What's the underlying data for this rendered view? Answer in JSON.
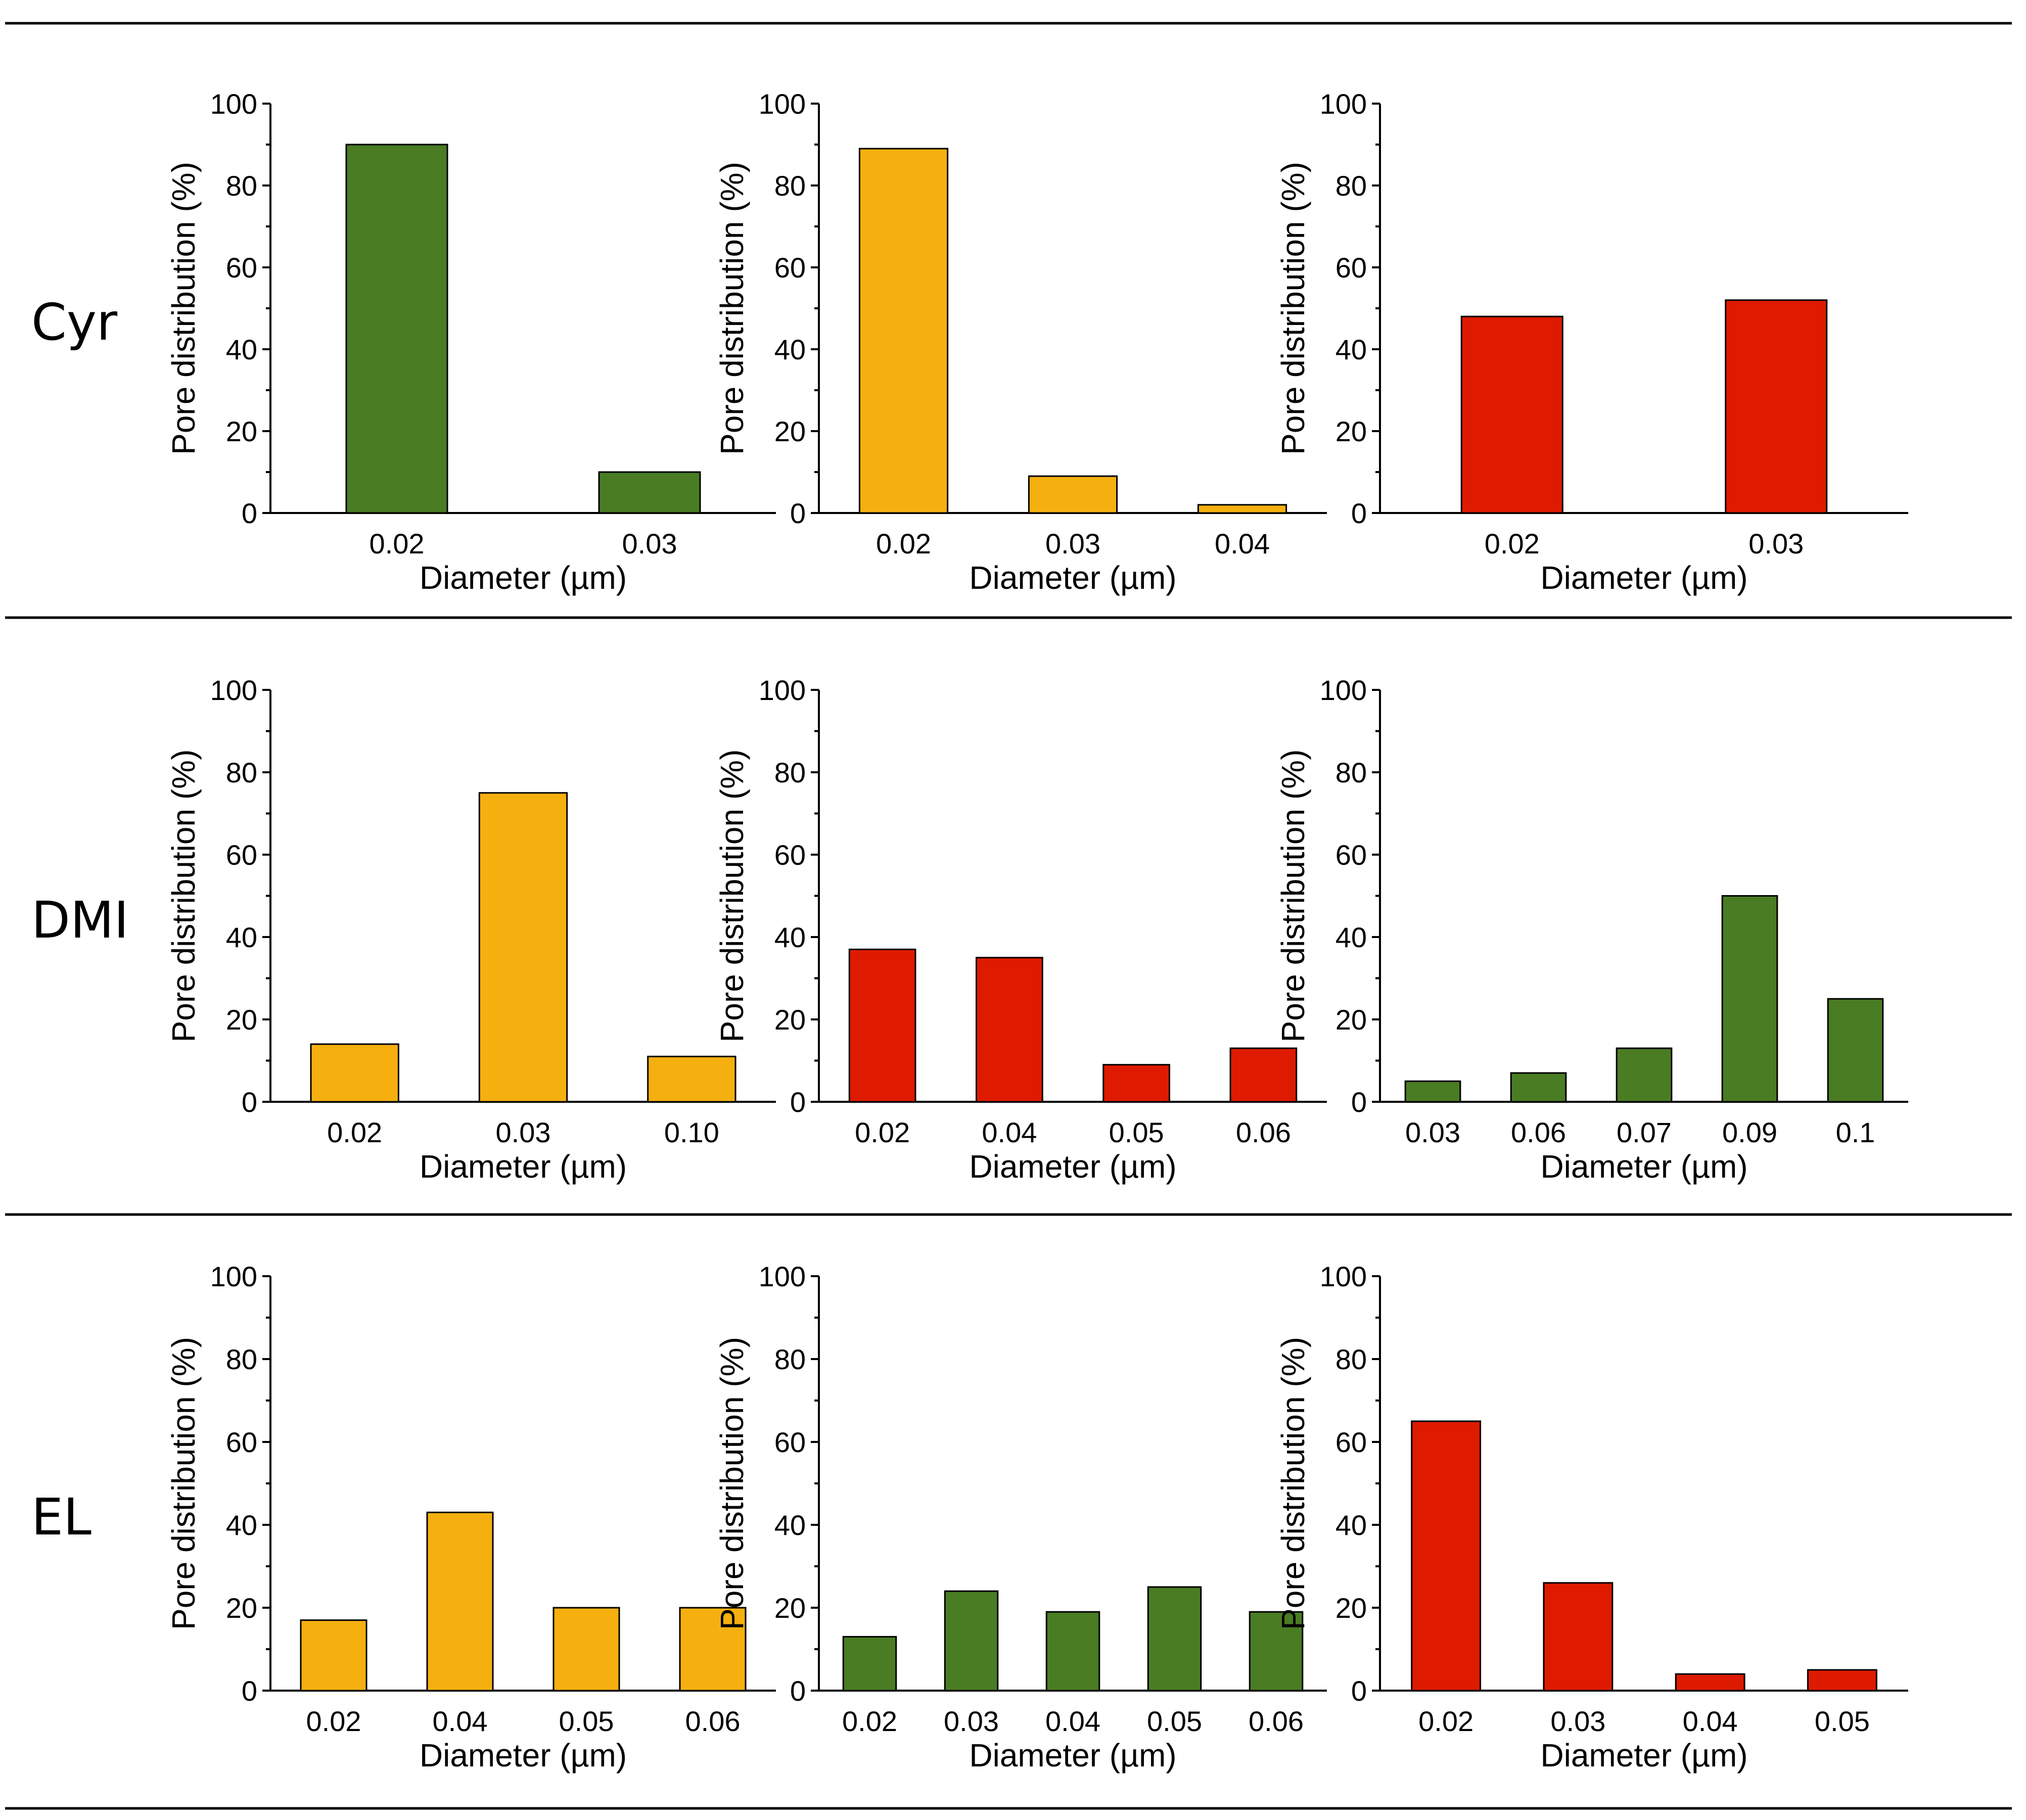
{
  "colors": {
    "green": "#4a7c23",
    "yellow": "#f5b00f",
    "red": "#de1a00"
  },
  "rows": [
    {
      "label": "Cyr"
    },
    {
      "label": "DMI"
    },
    {
      "label": "EL"
    }
  ],
  "chart_data": [
    {
      "type": "bar",
      "row": 0,
      "col": 0,
      "color": "green",
      "categories": [
        "0.02",
        "0.03"
      ],
      "values": [
        90,
        10
      ],
      "title": "",
      "xlabel": "Diameter (µm)",
      "ylabel": "Pore distribution (%)",
      "ylim": [
        0,
        100
      ],
      "yticks": [
        0,
        20,
        40,
        60,
        80,
        100
      ]
    },
    {
      "type": "bar",
      "row": 0,
      "col": 1,
      "color": "yellow",
      "categories": [
        "0.02",
        "0.03",
        "0.04"
      ],
      "values": [
        89,
        9,
        2
      ],
      "title": "",
      "xlabel": "Diameter (µm)",
      "ylabel": "Pore distribution (%)",
      "ylim": [
        0,
        100
      ],
      "yticks": [
        0,
        20,
        40,
        60,
        80,
        100
      ]
    },
    {
      "type": "bar",
      "row": 0,
      "col": 2,
      "color": "red",
      "categories": [
        "0.02",
        "0.03"
      ],
      "values": [
        48,
        52
      ],
      "title": "",
      "xlabel": "Diameter (µm)",
      "ylabel": "Pore distribution (%)",
      "ylim": [
        0,
        100
      ],
      "yticks": [
        0,
        20,
        40,
        60,
        80,
        100
      ]
    },
    {
      "type": "bar",
      "row": 1,
      "col": 0,
      "color": "yellow",
      "categories": [
        "0.02",
        "0.03",
        "0.10"
      ],
      "values": [
        14,
        75,
        11
      ],
      "title": "",
      "xlabel": "Diameter (µm)",
      "ylabel": "Pore distribution (%)",
      "ylim": [
        0,
        100
      ],
      "yticks": [
        0,
        20,
        40,
        60,
        80,
        100
      ]
    },
    {
      "type": "bar",
      "row": 1,
      "col": 1,
      "color": "red",
      "categories": [
        "0.02",
        "0.04",
        "0.05",
        "0.06"
      ],
      "values": [
        37,
        35,
        9,
        13
      ],
      "title": "",
      "xlabel": "Diameter (µm)",
      "ylabel": "Pore distribution (%)",
      "ylim": [
        0,
        100
      ],
      "yticks": [
        0,
        20,
        40,
        60,
        80,
        100
      ]
    },
    {
      "type": "bar",
      "row": 1,
      "col": 2,
      "color": "green",
      "categories": [
        "0.03",
        "0.06",
        "0.07",
        "0.09",
        "0.1"
      ],
      "values": [
        5,
        7,
        13,
        50,
        25
      ],
      "title": "",
      "xlabel": "Diameter (µm)",
      "ylabel": "Pore distribution (%)",
      "ylim": [
        0,
        100
      ],
      "yticks": [
        0,
        20,
        40,
        60,
        80,
        100
      ]
    },
    {
      "type": "bar",
      "row": 2,
      "col": 0,
      "color": "yellow",
      "categories": [
        "0.02",
        "0.04",
        "0.05",
        "0.06"
      ],
      "values": [
        17,
        43,
        20,
        20
      ],
      "title": "",
      "xlabel": "Diameter (µm)",
      "ylabel": "Pore distribution (%)",
      "ylim": [
        0,
        100
      ],
      "yticks": [
        0,
        20,
        40,
        60,
        80,
        100
      ]
    },
    {
      "type": "bar",
      "row": 2,
      "col": 1,
      "color": "green",
      "categories": [
        "0.02",
        "0.03",
        "0.04",
        "0.05",
        "0.06"
      ],
      "values": [
        13,
        24,
        19,
        25,
        19
      ],
      "title": "",
      "xlabel": "Diameter (µm)",
      "ylabel": "Pore distribution (%)",
      "ylim": [
        0,
        100
      ],
      "yticks": [
        0,
        20,
        40,
        60,
        80,
        100
      ]
    },
    {
      "type": "bar",
      "row": 2,
      "col": 2,
      "color": "red",
      "categories": [
        "0.02",
        "0.03",
        "0.04",
        "0.05"
      ],
      "values": [
        65,
        26,
        4,
        5
      ],
      "title": "",
      "xlabel": "Diameter (µm)",
      "ylabel": "Pore distribution (%)",
      "ylim": [
        0,
        100
      ],
      "yticks": [
        0,
        20,
        40,
        60,
        80,
        100
      ]
    }
  ]
}
